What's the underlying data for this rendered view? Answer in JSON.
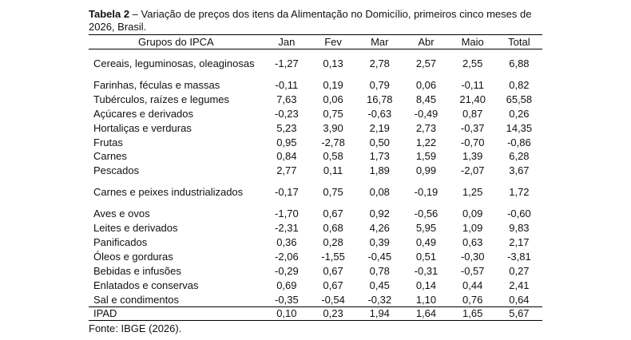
{
  "caption": {
    "label": "Tabela 2",
    "text": " – Variação de preços dos itens da Alimentação no Domicílio, primeiros cinco meses de 2026, Brasil."
  },
  "headers": [
    "Grupos do IPCA",
    "Jan",
    "Fev",
    "Mar",
    "Abr",
    "Maio",
    "Total"
  ],
  "rows": [
    {
      "group": "Cereais, leguminosas, oleaginosas",
      "values": [
        "-1,27",
        "0,13",
        "2,78",
        "2,57",
        "2,55",
        "6,88"
      ]
    },
    {
      "group": "Farinhas, féculas e massas",
      "values": [
        "-0,11",
        "0,19",
        "0,79",
        "0,06",
        "-0,11",
        "0,82"
      ]
    },
    {
      "group": "Tubérculos, raízes e legumes",
      "values": [
        "7,63",
        "0,06",
        "16,78",
        "8,45",
        "21,40",
        "65,58"
      ]
    },
    {
      "group": "Açúcares e derivados",
      "values": [
        "-0,23",
        "0,75",
        "-0,63",
        "-0,49",
        "0,87",
        "0,26"
      ]
    },
    {
      "group": "Hortaliças e verduras",
      "values": [
        "5,23",
        "3,90",
        "2,19",
        "2,73",
        "-0,37",
        "14,35"
      ]
    },
    {
      "group": "Frutas",
      "values": [
        "0,95",
        "-2,78",
        "0,50",
        "1,22",
        "-0,70",
        "-0,86"
      ]
    },
    {
      "group": "Carnes",
      "values": [
        "0,84",
        "0,58",
        "1,73",
        "1,59",
        "1,39",
        "6,28"
      ]
    },
    {
      "group": "Pescados",
      "values": [
        "2,77",
        "0,11",
        "1,89",
        "0,99",
        "-2,07",
        "3,67"
      ]
    },
    {
      "group": "Carnes e peixes industrializados",
      "values": [
        "-0,17",
        "0,75",
        "0,08",
        "-0,19",
        "1,25",
        "1,72"
      ]
    },
    {
      "group": "Aves e ovos",
      "values": [
        "-1,70",
        "0,67",
        "0,92",
        "-0,56",
        "0,09",
        "-0,60"
      ]
    },
    {
      "group": "Leites e derivados",
      "values": [
        "-2,31",
        "0,68",
        "4,26",
        "5,95",
        "1,09",
        "9,83"
      ]
    },
    {
      "group": "Panificados",
      "values": [
        "0,36",
        "0,28",
        "0,39",
        "0,49",
        "0,63",
        "2,17"
      ]
    },
    {
      "group": "Óleos e gorduras",
      "values": [
        "-2,06",
        "-1,55",
        "-0,45",
        "0,51",
        "-0,30",
        "-3,81"
      ]
    },
    {
      "group": "Bebidas e infusões",
      "values": [
        "-0,29",
        "0,67",
        "0,78",
        "-0,31",
        "-0,57",
        "0,27"
      ]
    },
    {
      "group": "Enlatados e conservas",
      "values": [
        "0,69",
        "0,67",
        "0,45",
        "0,14",
        "0,44",
        "2,41"
      ]
    },
    {
      "group": "Sal e condimentos",
      "values": [
        "-0,35",
        "-0,54",
        "-0,32",
        "1,10",
        "0,76",
        "0,64"
      ]
    }
  ],
  "total_row": {
    "group": "IPAD",
    "values": [
      "0,10",
      "0,23",
      "1,94",
      "1,64",
      "1,65",
      "5,67"
    ]
  },
  "source": "Fonte: IBGE (2026)."
}
